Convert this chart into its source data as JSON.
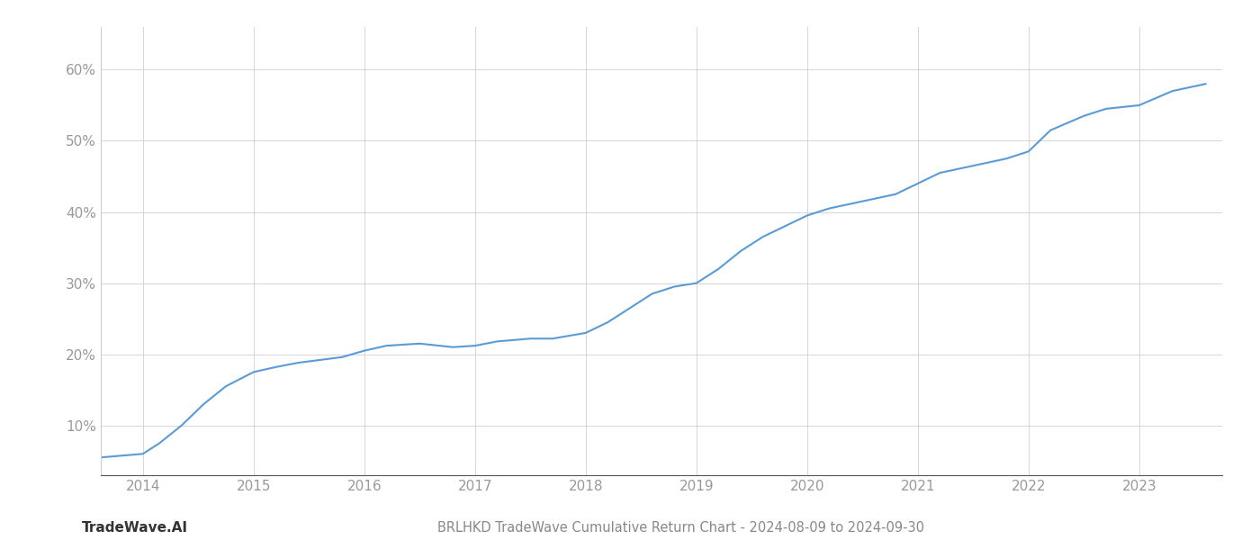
{
  "title": "BRLHKD TradeWave Cumulative Return Chart - 2024-08-09 to 2024-09-30",
  "watermark": "TradeWave.AI",
  "line_color": "#5b9bd5",
  "background_color": "#ffffff",
  "grid_color": "#cccccc",
  "x_values": [
    2013.62,
    2014.0,
    2014.15,
    2014.35,
    2014.55,
    2014.75,
    2015.0,
    2015.2,
    2015.4,
    2015.6,
    2015.8,
    2016.0,
    2016.2,
    2016.5,
    2016.8,
    2017.0,
    2017.2,
    2017.5,
    2017.7,
    2018.0,
    2018.2,
    2018.4,
    2018.6,
    2018.8,
    2019.0,
    2019.2,
    2019.4,
    2019.6,
    2019.8,
    2020.0,
    2020.2,
    2020.5,
    2020.8,
    2021.0,
    2021.2,
    2021.5,
    2021.8,
    2022.0,
    2022.2,
    2022.5,
    2022.7,
    2023.0,
    2023.3,
    2023.6
  ],
  "y_values": [
    5.5,
    6.0,
    7.5,
    10.0,
    13.0,
    15.5,
    17.5,
    18.2,
    18.8,
    19.2,
    19.6,
    20.5,
    21.2,
    21.5,
    21.0,
    21.2,
    21.8,
    22.2,
    22.2,
    23.0,
    24.5,
    26.5,
    28.5,
    29.5,
    30.0,
    32.0,
    34.5,
    36.5,
    38.0,
    39.5,
    40.5,
    41.5,
    42.5,
    44.0,
    45.5,
    46.5,
    47.5,
    48.5,
    51.5,
    53.5,
    54.5,
    55.0,
    57.0,
    58.0
  ],
  "yticks": [
    10,
    20,
    30,
    40,
    50,
    60
  ],
  "xticks": [
    2014,
    2015,
    2016,
    2017,
    2018,
    2019,
    2020,
    2021,
    2022,
    2023
  ],
  "ylim": [
    3,
    66
  ],
  "xlim": [
    2013.62,
    2023.75
  ],
  "tick_label_color": "#999999",
  "title_fontsize": 10.5,
  "watermark_fontsize": 11,
  "axis_label_color": "#888888",
  "line_width": 1.5,
  "tick_fontsize": 11
}
